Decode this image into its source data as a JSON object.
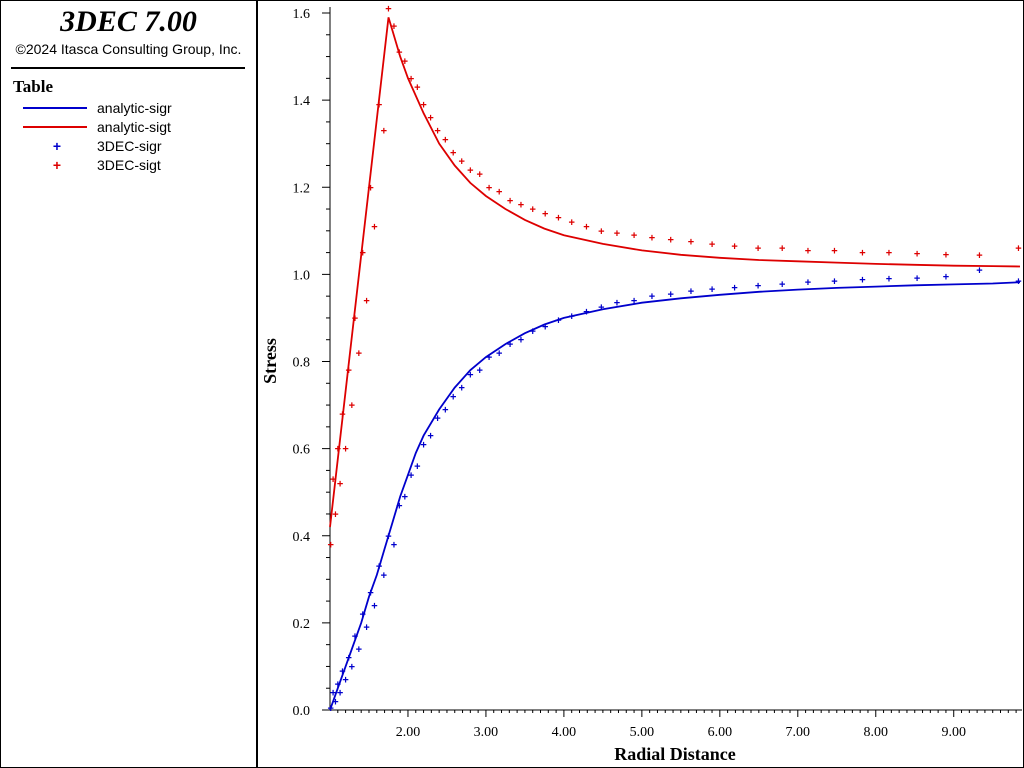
{
  "header": {
    "app_title": "3DEC 7.00",
    "copyright": "©2024 Itasca Consulting Group, Inc."
  },
  "legend": {
    "title": "Table",
    "items": [
      {
        "label": "analytic-sigr",
        "kind": "line",
        "color": "#0000cc"
      },
      {
        "label": "analytic-sigt",
        "kind": "line",
        "color": "#dd0000"
      },
      {
        "label": "3DEC-sigr",
        "kind": "marker",
        "color": "#0000cc"
      },
      {
        "label": "3DEC-sigt",
        "kind": "marker",
        "color": "#dd0000"
      }
    ]
  },
  "chart_data": {
    "type": "line",
    "xlabel": "Radial Distance",
    "ylabel": "Stress",
    "xlim": [
      1.0,
      9.85
    ],
    "ylim": [
      0.0,
      1.6
    ],
    "xticks": [
      "2.00",
      "3.00",
      "4.00",
      "5.00",
      "6.00",
      "7.00",
      "8.00",
      "9.00"
    ],
    "yticks": [
      "0.0",
      "0.2",
      "0.4",
      "0.6",
      "0.8",
      "1.0",
      "1.2",
      "1.4",
      "1.6"
    ],
    "series": [
      {
        "name": "analytic-sigr",
        "style": "line",
        "color": "#0000cc",
        "x": [
          1.0,
          1.1,
          1.2,
          1.3,
          1.4,
          1.5,
          1.6,
          1.7,
          1.75,
          1.8,
          1.9,
          2.0,
          2.1,
          2.2,
          2.4,
          2.6,
          2.8,
          3.0,
          3.25,
          3.5,
          3.75,
          4.0,
          4.5,
          5.0,
          5.5,
          6.0,
          6.5,
          7.0,
          7.5,
          8.0,
          8.5,
          9.0,
          9.5,
          9.85
        ],
        "y": [
          0.0,
          0.05,
          0.1,
          0.15,
          0.2,
          0.26,
          0.31,
          0.37,
          0.4,
          0.43,
          0.49,
          0.54,
          0.59,
          0.63,
          0.69,
          0.74,
          0.78,
          0.81,
          0.84,
          0.865,
          0.885,
          0.9,
          0.92,
          0.935,
          0.945,
          0.953,
          0.96,
          0.965,
          0.969,
          0.972,
          0.975,
          0.977,
          0.979,
          0.982
        ]
      },
      {
        "name": "analytic-sigt",
        "style": "line",
        "color": "#dd0000",
        "x": [
          1.0,
          1.75,
          1.8,
          1.9,
          2.0,
          2.2,
          2.4,
          2.6,
          2.8,
          3.0,
          3.25,
          3.5,
          3.75,
          4.0,
          4.5,
          5.0,
          5.5,
          6.0,
          6.5,
          7.0,
          7.5,
          8.0,
          8.5,
          9.0,
          9.5,
          9.85
        ],
        "y": [
          0.42,
          1.59,
          1.56,
          1.5,
          1.45,
          1.37,
          1.3,
          1.25,
          1.21,
          1.18,
          1.15,
          1.125,
          1.105,
          1.09,
          1.07,
          1.055,
          1.045,
          1.038,
          1.033,
          1.03,
          1.027,
          1.024,
          1.022,
          1.02,
          1.019,
          1.018
        ]
      },
      {
        "name": "3DEC-sigr",
        "style": "marker",
        "color": "#0000cc",
        "x": [
          1.01,
          1.04,
          1.07,
          1.1,
          1.13,
          1.16,
          1.2,
          1.24,
          1.28,
          1.32,
          1.37,
          1.42,
          1.47,
          1.52,
          1.57,
          1.63,
          1.69,
          1.75,
          1.82,
          1.89,
          1.96,
          2.04,
          2.12,
          2.2,
          2.29,
          2.38,
          2.48,
          2.58,
          2.69,
          2.8,
          2.92,
          3.04,
          3.17,
          3.31,
          3.45,
          3.6,
          3.76,
          3.93,
          4.1,
          4.29,
          4.48,
          4.68,
          4.9,
          5.13,
          5.37,
          5.63,
          5.9,
          6.19,
          6.49,
          6.8,
          7.13,
          7.47,
          7.83,
          8.17,
          8.53,
          8.9,
          9.33,
          9.83
        ],
        "y": [
          0.005,
          0.04,
          0.02,
          0.06,
          0.04,
          0.09,
          0.07,
          0.12,
          0.1,
          0.17,
          0.14,
          0.22,
          0.19,
          0.27,
          0.24,
          0.33,
          0.31,
          0.4,
          0.38,
          0.47,
          0.49,
          0.54,
          0.56,
          0.61,
          0.63,
          0.67,
          0.69,
          0.72,
          0.74,
          0.77,
          0.78,
          0.81,
          0.82,
          0.84,
          0.85,
          0.87,
          0.88,
          0.895,
          0.905,
          0.915,
          0.925,
          0.935,
          0.94,
          0.95,
          0.955,
          0.962,
          0.966,
          0.97,
          0.975,
          0.978,
          0.982,
          0.985,
          0.988,
          0.99,
          0.992,
          0.995,
          1.01,
          0.985
        ]
      },
      {
        "name": "3DEC-sigt",
        "style": "marker",
        "color": "#dd0000",
        "x": [
          1.01,
          1.04,
          1.07,
          1.1,
          1.13,
          1.16,
          1.2,
          1.24,
          1.28,
          1.32,
          1.37,
          1.42,
          1.47,
          1.52,
          1.57,
          1.63,
          1.69,
          1.75,
          1.82,
          1.89,
          1.96,
          2.04,
          2.12,
          2.2,
          2.29,
          2.38,
          2.48,
          2.58,
          2.69,
          2.8,
          2.92,
          3.04,
          3.17,
          3.31,
          3.45,
          3.6,
          3.76,
          3.93,
          4.1,
          4.29,
          4.48,
          4.68,
          4.9,
          5.13,
          5.37,
          5.63,
          5.9,
          6.19,
          6.49,
          6.8,
          7.13,
          7.47,
          7.83,
          8.17,
          8.53,
          8.9,
          9.33,
          9.83
        ],
        "y": [
          0.38,
          0.53,
          0.45,
          0.6,
          0.52,
          0.68,
          0.6,
          0.78,
          0.7,
          0.9,
          0.82,
          1.05,
          0.94,
          1.2,
          1.11,
          1.39,
          1.33,
          1.61,
          1.57,
          1.51,
          1.49,
          1.45,
          1.43,
          1.39,
          1.36,
          1.33,
          1.31,
          1.28,
          1.26,
          1.24,
          1.23,
          1.2,
          1.19,
          1.17,
          1.16,
          1.15,
          1.14,
          1.13,
          1.12,
          1.11,
          1.1,
          1.095,
          1.09,
          1.085,
          1.08,
          1.075,
          1.07,
          1.065,
          1.06,
          1.06,
          1.055,
          1.055,
          1.05,
          1.05,
          1.048,
          1.046,
          1.044,
          1.06
        ]
      }
    ]
  }
}
